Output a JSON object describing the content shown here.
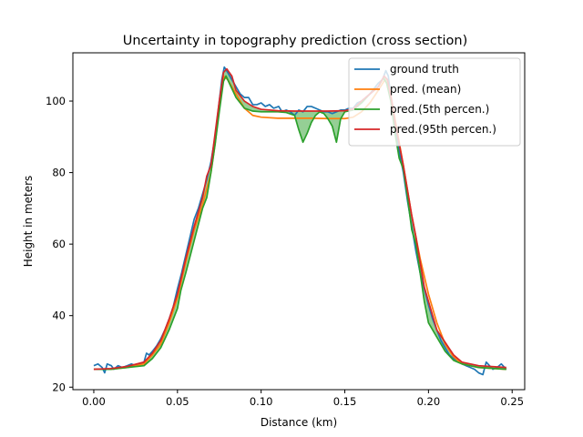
{
  "chart_data": {
    "type": "line",
    "title": "Uncertainty in topography prediction  (cross section)",
    "xlabel": "Distance (km)",
    "ylabel": "Height in meters",
    "xlim": [
      -0.0125,
      0.2575
    ],
    "ylim": [
      19.3,
      113.5
    ],
    "xticks": [
      0.0,
      0.05,
      0.1,
      0.15,
      0.2,
      0.25
    ],
    "xtick_labels": [
      "0.00",
      "0.05",
      "0.10",
      "0.15",
      "0.20",
      "0.25"
    ],
    "yticks": [
      20,
      40,
      60,
      80,
      100
    ],
    "ytick_labels": [
      "20",
      "40",
      "60",
      "80",
      "100"
    ],
    "grid": false,
    "legend_position": "top-right",
    "fill_between": {
      "lower": "pred.(5th percen.)",
      "upper": "pred.(95th percen.)",
      "color": "#2ca02c",
      "alpha": 0.5
    },
    "series": [
      {
        "name": "ground truth",
        "color": "#1f77b4",
        "points": [
          [
            0,
            26
          ],
          [
            0.0025,
            26.5
          ],
          [
            0.005,
            25.5
          ],
          [
            0.0065,
            24
          ],
          [
            0.008,
            26.5
          ],
          [
            0.0105,
            26
          ],
          [
            0.012,
            25
          ],
          [
            0.0145,
            26
          ],
          [
            0.017,
            25.5
          ],
          [
            0.02,
            26
          ],
          [
            0.0225,
            26.5
          ],
          [
            0.025,
            26
          ],
          [
            0.0275,
            26.5
          ],
          [
            0.03,
            27
          ],
          [
            0.0315,
            29.5
          ],
          [
            0.033,
            29
          ],
          [
            0.035,
            30
          ],
          [
            0.0375,
            31.5
          ],
          [
            0.04,
            33.5
          ],
          [
            0.0425,
            36
          ],
          [
            0.045,
            39
          ],
          [
            0.0475,
            42.5
          ],
          [
            0.05,
            47.5
          ],
          [
            0.0525,
            52
          ],
          [
            0.055,
            57
          ],
          [
            0.0575,
            62
          ],
          [
            0.06,
            67
          ],
          [
            0.0625,
            70
          ],
          [
            0.065,
            74
          ],
          [
            0.0675,
            78
          ],
          [
            0.07,
            83
          ],
          [
            0.0725,
            90
          ],
          [
            0.075,
            100
          ],
          [
            0.0765,
            106
          ],
          [
            0.078,
            109.5
          ],
          [
            0.08,
            108
          ],
          [
            0.0825,
            106
          ],
          [
            0.085,
            104
          ],
          [
            0.0875,
            102
          ],
          [
            0.09,
            101
          ],
          [
            0.0925,
            101
          ],
          [
            0.095,
            99
          ],
          [
            0.0975,
            99
          ],
          [
            0.1,
            99.5
          ],
          [
            0.1025,
            98.5
          ],
          [
            0.105,
            99
          ],
          [
            0.1075,
            98
          ],
          [
            0.1105,
            98.5
          ],
          [
            0.1125,
            97
          ],
          [
            0.115,
            97.5
          ],
          [
            0.1175,
            97
          ],
          [
            0.12,
            96
          ],
          [
            0.1225,
            97.5
          ],
          [
            0.125,
            97
          ],
          [
            0.1275,
            98.5
          ],
          [
            0.13,
            98.5
          ],
          [
            0.1325,
            98
          ],
          [
            0.135,
            97.5
          ],
          [
            0.1375,
            97
          ],
          [
            0.14,
            97
          ],
          [
            0.1425,
            96.5
          ],
          [
            0.145,
            97
          ],
          [
            0.1475,
            97.5
          ],
          [
            0.15,
            97.5
          ],
          [
            0.1525,
            98
          ],
          [
            0.155,
            98
          ],
          [
            0.1575,
            99.5
          ],
          [
            0.16,
            100
          ],
          [
            0.1625,
            101
          ],
          [
            0.165,
            102
          ],
          [
            0.1675,
            103.5
          ],
          [
            0.17,
            105
          ],
          [
            0.1725,
            106
          ],
          [
            0.1745,
            108.5
          ],
          [
            0.176,
            107
          ],
          [
            0.1775,
            101
          ],
          [
            0.18,
            92
          ],
          [
            0.1825,
            86
          ],
          [
            0.185,
            80
          ],
          [
            0.1875,
            72
          ],
          [
            0.19,
            65
          ],
          [
            0.1925,
            58
          ],
          [
            0.195,
            52
          ],
          [
            0.1975,
            47.5
          ],
          [
            0.2,
            43
          ],
          [
            0.2025,
            39
          ],
          [
            0.205,
            36
          ],
          [
            0.2075,
            33
          ],
          [
            0.21,
            31
          ],
          [
            0.2125,
            29
          ],
          [
            0.215,
            28
          ],
          [
            0.2175,
            27.5
          ],
          [
            0.22,
            26.5
          ],
          [
            0.2225,
            26
          ],
          [
            0.225,
            25.5
          ],
          [
            0.2275,
            25
          ],
          [
            0.23,
            24
          ],
          [
            0.2325,
            23.5
          ],
          [
            0.2345,
            27
          ],
          [
            0.2365,
            26
          ],
          [
            0.2385,
            25
          ],
          [
            0.241,
            25.5
          ],
          [
            0.2435,
            26.5
          ],
          [
            0.2465,
            25
          ]
        ]
      },
      {
        "name": "pred. (mean)",
        "color": "#ff7f0e",
        "points": [
          [
            0,
            25
          ],
          [
            0.01,
            25
          ],
          [
            0.02,
            25.5
          ],
          [
            0.03,
            26.5
          ],
          [
            0.035,
            29
          ],
          [
            0.04,
            32
          ],
          [
            0.045,
            38
          ],
          [
            0.05,
            45
          ],
          [
            0.055,
            55
          ],
          [
            0.06,
            64
          ],
          [
            0.065,
            71
          ],
          [
            0.07,
            80
          ],
          [
            0.0725,
            88
          ],
          [
            0.075,
            98
          ],
          [
            0.0775,
            107
          ],
          [
            0.08,
            106
          ],
          [
            0.085,
            102
          ],
          [
            0.09,
            98
          ],
          [
            0.095,
            96
          ],
          [
            0.1,
            95.5
          ],
          [
            0.11,
            95.2
          ],
          [
            0.12,
            95.2
          ],
          [
            0.13,
            95.2
          ],
          [
            0.14,
            95.1
          ],
          [
            0.15,
            95.1
          ],
          [
            0.155,
            95.5
          ],
          [
            0.16,
            97
          ],
          [
            0.165,
            99.5
          ],
          [
            0.17,
            103
          ],
          [
            0.174,
            106
          ],
          [
            0.177,
            103
          ],
          [
            0.18,
            95
          ],
          [
            0.185,
            82
          ],
          [
            0.19,
            68
          ],
          [
            0.195,
            56
          ],
          [
            0.2,
            46
          ],
          [
            0.205,
            38
          ],
          [
            0.21,
            32
          ],
          [
            0.215,
            28.5
          ],
          [
            0.22,
            26.5
          ],
          [
            0.23,
            25.5
          ],
          [
            0.2465,
            25
          ]
        ]
      },
      {
        "name": "pred.(5th percen.)",
        "color": "#2ca02c",
        "points": [
          [
            0,
            25
          ],
          [
            0.01,
            25
          ],
          [
            0.02,
            25.5
          ],
          [
            0.03,
            26
          ],
          [
            0.035,
            28
          ],
          [
            0.04,
            31
          ],
          [
            0.045,
            36
          ],
          [
            0.05,
            42
          ],
          [
            0.052,
            47
          ],
          [
            0.055,
            52
          ],
          [
            0.06,
            61
          ],
          [
            0.065,
            70
          ],
          [
            0.0675,
            73
          ],
          [
            0.07,
            80
          ],
          [
            0.0725,
            88
          ],
          [
            0.075,
            97
          ],
          [
            0.0775,
            105.5
          ],
          [
            0.079,
            107
          ],
          [
            0.081,
            105
          ],
          [
            0.085,
            101
          ],
          [
            0.09,
            98
          ],
          [
            0.095,
            97.2
          ],
          [
            0.1,
            97
          ],
          [
            0.11,
            97
          ],
          [
            0.115,
            96.8
          ],
          [
            0.12,
            96
          ],
          [
            0.1225,
            92
          ],
          [
            0.125,
            88.5
          ],
          [
            0.1275,
            91
          ],
          [
            0.13,
            94
          ],
          [
            0.1325,
            96
          ],
          [
            0.135,
            97
          ],
          [
            0.1375,
            96.5
          ],
          [
            0.14,
            95
          ],
          [
            0.1425,
            93
          ],
          [
            0.145,
            88.5
          ],
          [
            0.1475,
            95
          ],
          [
            0.15,
            97
          ],
          [
            0.155,
            97.5
          ],
          [
            0.16,
            99.5
          ],
          [
            0.165,
            102
          ],
          [
            0.17,
            104
          ],
          [
            0.173,
            106.5
          ],
          [
            0.175,
            105
          ],
          [
            0.1775,
            100
          ],
          [
            0.18,
            91
          ],
          [
            0.1825,
            84
          ],
          [
            0.185,
            81
          ],
          [
            0.1875,
            73
          ],
          [
            0.19,
            64
          ],
          [
            0.1925,
            60
          ],
          [
            0.195,
            52
          ],
          [
            0.1975,
            44
          ],
          [
            0.2,
            38
          ],
          [
            0.2025,
            36
          ],
          [
            0.205,
            34
          ],
          [
            0.21,
            30
          ],
          [
            0.215,
            27.5
          ],
          [
            0.22,
            26.5
          ],
          [
            0.23,
            25.5
          ],
          [
            0.2465,
            25
          ]
        ]
      },
      {
        "name": "pred.(95th percen.)",
        "color": "#d62728",
        "points": [
          [
            0,
            25
          ],
          [
            0.01,
            25.2
          ],
          [
            0.02,
            25.8
          ],
          [
            0.03,
            27
          ],
          [
            0.035,
            29.5
          ],
          [
            0.04,
            33
          ],
          [
            0.045,
            39
          ],
          [
            0.05,
            46
          ],
          [
            0.055,
            56
          ],
          [
            0.06,
            65
          ],
          [
            0.065,
            73
          ],
          [
            0.0675,
            79
          ],
          [
            0.07,
            82
          ],
          [
            0.0725,
            91
          ],
          [
            0.075,
            100
          ],
          [
            0.0775,
            108
          ],
          [
            0.0795,
            109
          ],
          [
            0.0825,
            107
          ],
          [
            0.085,
            103
          ],
          [
            0.09,
            100
          ],
          [
            0.095,
            98.5
          ],
          [
            0.1,
            97.7
          ],
          [
            0.11,
            97.3
          ],
          [
            0.12,
            97.2
          ],
          [
            0.13,
            97.2
          ],
          [
            0.14,
            97.2
          ],
          [
            0.15,
            97.3
          ],
          [
            0.155,
            97.8
          ],
          [
            0.16,
            100
          ],
          [
            0.165,
            102
          ],
          [
            0.17,
            104
          ],
          [
            0.1735,
            107
          ],
          [
            0.1755,
            106
          ],
          [
            0.178,
            100
          ],
          [
            0.18,
            94
          ],
          [
            0.1825,
            88
          ],
          [
            0.185,
            82
          ],
          [
            0.1875,
            75
          ],
          [
            0.19,
            68
          ],
          [
            0.1925,
            62
          ],
          [
            0.195,
            55
          ],
          [
            0.1975,
            48
          ],
          [
            0.2,
            44
          ],
          [
            0.2025,
            40
          ],
          [
            0.205,
            36
          ],
          [
            0.21,
            32.5
          ],
          [
            0.215,
            29
          ],
          [
            0.22,
            27
          ],
          [
            0.23,
            26
          ],
          [
            0.2465,
            25.5
          ]
        ]
      }
    ]
  }
}
